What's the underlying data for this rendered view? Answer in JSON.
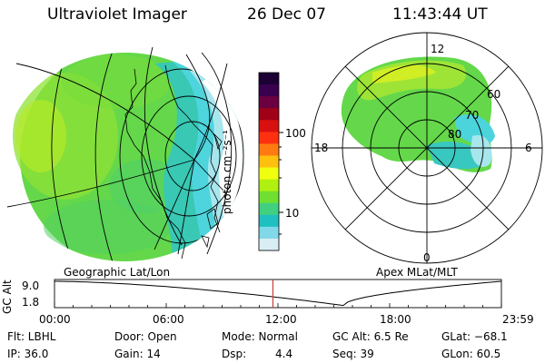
{
  "header": {
    "instrument": "Ultraviolet Imager",
    "date": "26 Dec 07",
    "time": "11:43:44 UT"
  },
  "colorbar": {
    "label": "photon cm⁻²s⁻¹",
    "ticks": [
      "100",
      "10"
    ],
    "colors": [
      "#1a0033",
      "#3a0050",
      "#6a0040",
      "#a00018",
      "#d81010",
      "#ff3010",
      "#ff7a10",
      "#ffc010",
      "#f0ff10",
      "#b0f010",
      "#70e030",
      "#40d080",
      "#20c0c0",
      "#80d8e8",
      "#d8eef4"
    ]
  },
  "left_panel": {
    "caption": "Geographic Lat/Lon"
  },
  "right_panel": {
    "caption": "Apex MLat/MLT",
    "mlt_labels": {
      "top": "12",
      "left": "18",
      "right": "6",
      "bottom": "0"
    },
    "lat_labels": [
      "60",
      "70",
      "80"
    ]
  },
  "timeline": {
    "ylabel": "GC Alt",
    "y_ticks": [
      "9.0",
      "1.8"
    ],
    "x_ticks": [
      "00:00",
      "06:00",
      "12:00",
      "18:00",
      "23:59"
    ],
    "current_time_hours": 11.73,
    "marker_color": "#c83c3c"
  },
  "status": {
    "flt_label": "Flt: LBHL",
    "ip_label": "IP: 36.0",
    "door_label": "Door: Open",
    "gain_label": "Gain: 14",
    "mode_label": "Mode: Normal",
    "dsp_label": "Dsp:",
    "dsp_value": "4.4",
    "gcalt_label": "GC Alt: 6.5 Re",
    "seq_label": "Seq: 39",
    "glat_label": "GLat: −68.1",
    "glon_label": "GLon:  60.5"
  }
}
